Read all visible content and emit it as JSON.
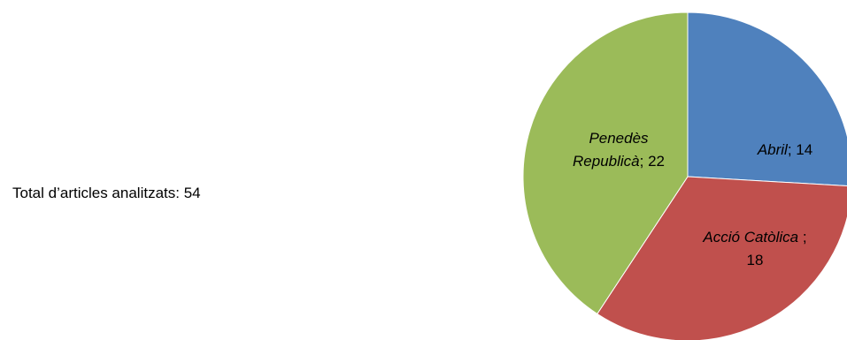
{
  "summary": {
    "total_label": "Total d’articles analitzats: 54"
  },
  "chart_data": {
    "type": "pie",
    "title": "",
    "slices": [
      {
        "label": "Abril",
        "value": 14,
        "color": "#4f81bd",
        "label_lines": [
          [
            {
              "text": "Abril",
              "italic": true
            },
            {
              "text": "; 14",
              "italic": false
            }
          ]
        ]
      },
      {
        "label": "Acció Catòlica",
        "value": 18,
        "color": "#c0504d",
        "label_lines": [
          [
            {
              "text": "Acció Catòlica",
              "italic": true
            },
            {
              "text": " ;",
              "italic": false
            }
          ],
          [
            {
              "text": "18",
              "italic": false
            }
          ]
        ]
      },
      {
        "label": "Penedès Republicà",
        "value": 22,
        "color": "#9bbb59",
        "label_lines": [
          [
            {
              "text": "Penedès",
              "italic": true
            }
          ],
          [
            {
              "text": "Republicà",
              "italic": true
            },
            {
              "text": "; 22",
              "italic": false
            }
          ]
        ]
      }
    ],
    "start_angle": "12 o'clock",
    "direction": "clockwise",
    "legend": "none"
  }
}
